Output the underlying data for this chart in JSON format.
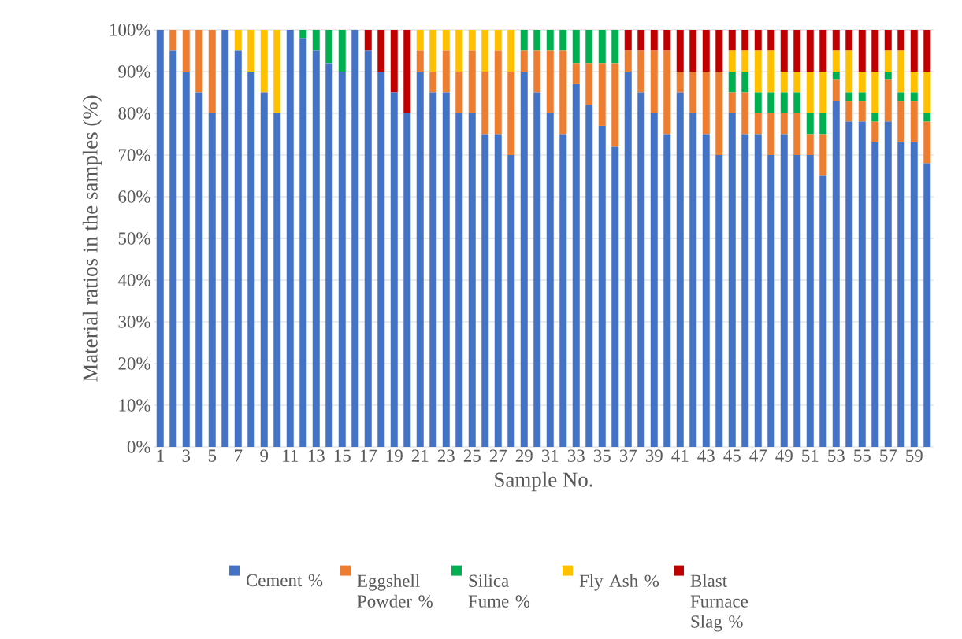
{
  "chart_data": {
    "type": "bar",
    "stacked": true,
    "xlabel": "Sample No.",
    "ylabel": "Material ratios in the samples (%)",
    "categories": [
      "1",
      null,
      "3",
      null,
      "5",
      null,
      "7",
      null,
      "9",
      null,
      "11",
      null,
      "13",
      null,
      "15",
      null,
      "17",
      null,
      "19",
      null,
      "21",
      null,
      "23",
      null,
      "25",
      null,
      "27",
      null,
      "29",
      null,
      "31",
      null,
      "33",
      null,
      "35",
      null,
      "37",
      null,
      "39",
      null,
      "41",
      null,
      "43",
      null,
      "45",
      null,
      "47",
      null,
      "49",
      null,
      "51",
      null,
      "53",
      null,
      "55",
      null,
      "57",
      null,
      "59",
      null
    ],
    "series": [
      {
        "name": "Cement %",
        "color": "#4472c4",
        "values": [
          100,
          95,
          90,
          85,
          80,
          100,
          95,
          90,
          85,
          80,
          100,
          98,
          95,
          92,
          90,
          100,
          95,
          90,
          85,
          80,
          90,
          85,
          85,
          80,
          80,
          75,
          75,
          70,
          90,
          85,
          80,
          75,
          87,
          82,
          77,
          72,
          90,
          85,
          80,
          75,
          85,
          80,
          75,
          70,
          80,
          75,
          75,
          70,
          75,
          70,
          70,
          65,
          83,
          78,
          78,
          73,
          78,
          73,
          73,
          68
        ]
      },
      {
        "name": "Eggshell Powder %",
        "color": "#ed7d31",
        "values": [
          0,
          5,
          10,
          15,
          20,
          0,
          0,
          0,
          0,
          0,
          0,
          0,
          0,
          0,
          0,
          0,
          0,
          0,
          0,
          0,
          5,
          5,
          10,
          10,
          15,
          15,
          20,
          20,
          5,
          10,
          15,
          20,
          5,
          10,
          15,
          20,
          5,
          10,
          15,
          20,
          5,
          10,
          15,
          20,
          5,
          10,
          5,
          10,
          5,
          10,
          5,
          10,
          5,
          5,
          5,
          5,
          10,
          10,
          10,
          10
        ]
      },
      {
        "name": "Silica Fume %",
        "color": "#00b050",
        "values": [
          0,
          0,
          0,
          0,
          0,
          0,
          0,
          0,
          0,
          0,
          0,
          2,
          5,
          8,
          10,
          0,
          0,
          0,
          0,
          0,
          0,
          0,
          0,
          0,
          0,
          0,
          0,
          0,
          5,
          5,
          5,
          5,
          8,
          8,
          8,
          8,
          0,
          0,
          0,
          0,
          0,
          0,
          0,
          0,
          5,
          5,
          5,
          5,
          5,
          5,
          5,
          5,
          2,
          2,
          2,
          2,
          2,
          2,
          2,
          2
        ]
      },
      {
        "name": "Fly Ash %",
        "color": "#ffc000",
        "values": [
          0,
          0,
          0,
          0,
          0,
          0,
          5,
          10,
          15,
          20,
          0,
          0,
          0,
          0,
          0,
          0,
          0,
          0,
          0,
          0,
          5,
          10,
          5,
          10,
          5,
          10,
          5,
          10,
          0,
          0,
          0,
          0,
          0,
          0,
          0,
          0,
          0,
          0,
          0,
          0,
          0,
          0,
          0,
          0,
          5,
          5,
          10,
          10,
          5,
          5,
          10,
          10,
          5,
          10,
          5,
          10,
          5,
          10,
          5,
          10
        ]
      },
      {
        "name": "Blast Furnace Slag %",
        "color": "#c00000",
        "values": [
          0,
          0,
          0,
          0,
          0,
          0,
          0,
          0,
          0,
          0,
          0,
          0,
          0,
          0,
          0,
          0,
          5,
          10,
          15,
          20,
          0,
          0,
          0,
          0,
          0,
          0,
          0,
          0,
          0,
          0,
          0,
          0,
          0,
          0,
          0,
          0,
          5,
          5,
          5,
          5,
          10,
          10,
          10,
          10,
          5,
          5,
          5,
          5,
          10,
          10,
          10,
          10,
          5,
          5,
          10,
          10,
          5,
          5,
          10,
          10
        ]
      }
    ],
    "ylim": [
      0,
      100
    ],
    "yticks": [
      {
        "value": 0,
        "label": "0%"
      },
      {
        "value": 10,
        "label": "10%"
      },
      {
        "value": 20,
        "label": "20%"
      },
      {
        "value": 30,
        "label": "30%"
      },
      {
        "value": 40,
        "label": "40%"
      },
      {
        "value": 50,
        "label": "50%"
      },
      {
        "value": 60,
        "label": "60%"
      },
      {
        "value": 70,
        "label": "70%"
      },
      {
        "value": 80,
        "label": "80%"
      },
      {
        "value": 90,
        "label": "90%"
      },
      {
        "value": 100,
        "label": "100%"
      }
    ],
    "grid": "y",
    "legend": "bottom"
  }
}
